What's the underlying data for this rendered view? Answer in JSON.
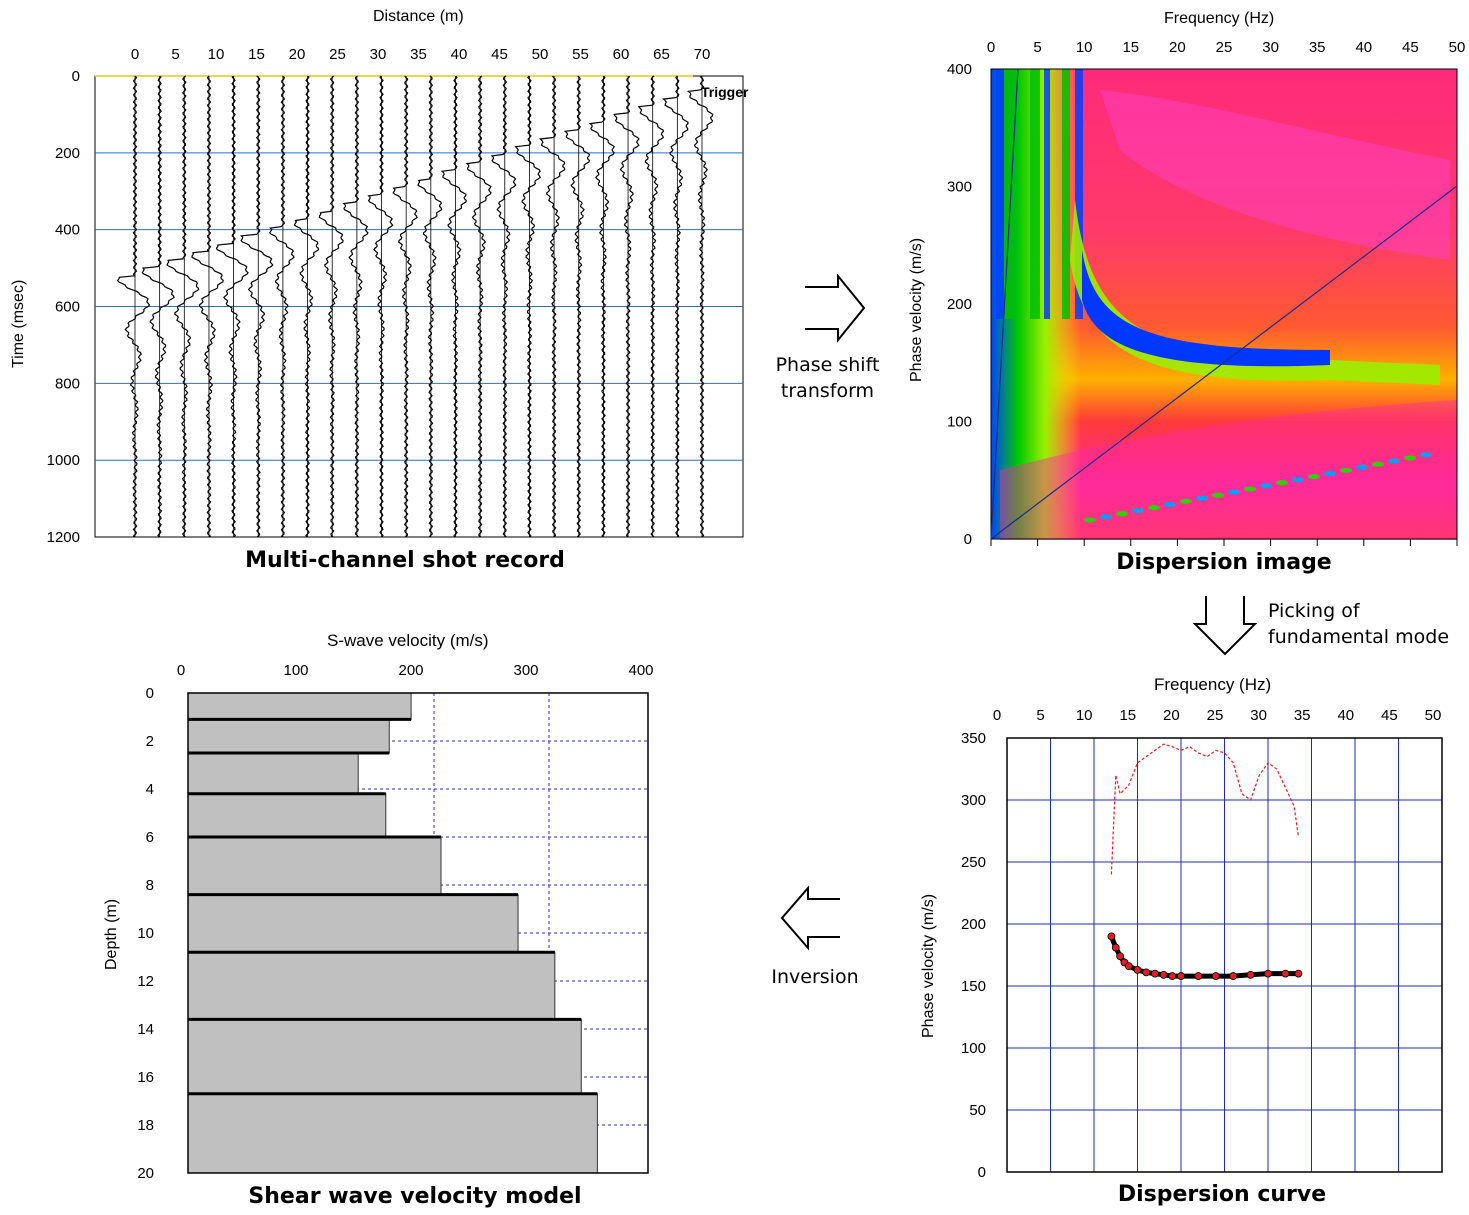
{
  "colors": {
    "grid": "#2b6fc2",
    "curve_grid": "#1c2bb0",
    "model_grid": "#2a2ad6",
    "trace": "#000000",
    "pick_red": "#e02020",
    "model_fill": "#c0c0c0",
    "first_arrival_line": "#1c2b8c"
  },
  "panels": {
    "shot_record": {
      "caption": "Multi-channel shot record",
      "x_title": "Distance (m)",
      "y_title": "Time (msec)",
      "x_ticks": [
        "0",
        "5",
        "10",
        "15",
        "20",
        "25",
        "30",
        "35",
        "40",
        "45",
        "50",
        "55",
        "60",
        "65",
        "70"
      ],
      "y_ticks": [
        "0",
        "200",
        "400",
        "600",
        "800",
        "1000",
        "1200"
      ],
      "trigger_label": "Trigger"
    },
    "dispersion_image": {
      "caption": "Dispersion image",
      "x_title": "Frequency (Hz)",
      "y_title": "Phase velocity (m/s)",
      "x_ticks": [
        "0",
        "5",
        "10",
        "15",
        "20",
        "25",
        "30",
        "35",
        "40",
        "45",
        "50"
      ],
      "y_ticks": [
        "400",
        "300",
        "200",
        "100",
        "0"
      ]
    },
    "dispersion_curve": {
      "caption": "Dispersion curve",
      "x_title": "Frequency (Hz)",
      "y_title": "Phase velocity (m/s)",
      "x_ticks": [
        "0",
        "5",
        "10",
        "15",
        "20",
        "25",
        "30",
        "35",
        "40",
        "45",
        "50"
      ],
      "y_ticks": [
        "350",
        "300",
        "250",
        "200",
        "150",
        "100",
        "50",
        "0"
      ]
    },
    "velocity_model": {
      "caption": "Shear wave velocity model",
      "x_title": "S-wave velocity (m/s)",
      "y_title": "Depth (m)",
      "x_ticks": [
        "0",
        "100",
        "200",
        "300",
        "400"
      ],
      "y_ticks": [
        "0",
        "2",
        "4",
        "6",
        "8",
        "10",
        "12",
        "14",
        "16",
        "18",
        "20"
      ]
    }
  },
  "steps": {
    "phase_shift": [
      "Phase shift",
      "transform"
    ],
    "picking": [
      "Picking of",
      "fundamental mode"
    ],
    "inversion": "Inversion"
  },
  "chart_data": [
    {
      "type": "line",
      "name": "dispersion_curve",
      "xlabel": "Frequency (Hz)",
      "ylabel": "Phase velocity (m/s)",
      "xlim": [
        0,
        50
      ],
      "ylim": [
        0,
        350
      ],
      "grid": true,
      "series": [
        {
          "style": "markers",
          "x": [
            12.0,
            12.5,
            13.0,
            13.5,
            14.0,
            15.0,
            16.0,
            17.0,
            18.0,
            19.0,
            20.0,
            22.0,
            24.0,
            26.0,
            28.0,
            30.0,
            32.0,
            33.5
          ],
          "y": [
            190,
            181,
            174,
            169,
            166,
            163,
            161,
            160,
            159,
            158,
            158,
            158,
            158,
            158,
            159,
            160,
            160,
            160
          ]
        },
        {
          "style": "dashed",
          "x": [
            12.0,
            12.5,
            13.0,
            14.0,
            15.0,
            16.0,
            17.0,
            18.0,
            19.0,
            20.0,
            21.0,
            22.0,
            23.0,
            24.0,
            25.0,
            26.0,
            27.0,
            28.0,
            29.0,
            30.0,
            31.0,
            32.0,
            33.0,
            33.5
          ],
          "y": [
            240,
            320,
            305,
            312,
            330,
            335,
            340,
            345,
            343,
            340,
            343,
            338,
            335,
            340,
            338,
            330,
            305,
            300,
            320,
            330,
            325,
            310,
            295,
            270
          ]
        }
      ]
    },
    {
      "type": "bar",
      "name": "shear_wave_velocity_model",
      "xlabel": "S-wave velocity (m/s)",
      "ylabel": "Depth (m)",
      "xlim": [
        0,
        400
      ],
      "ylim": [
        0,
        20
      ],
      "layers": [
        {
          "top": 0.0,
          "bottom": 1.1,
          "velocity": 194
        },
        {
          "top": 1.1,
          "bottom": 2.5,
          "velocity": 175
        },
        {
          "top": 2.5,
          "bottom": 4.2,
          "velocity": 148
        },
        {
          "top": 4.2,
          "bottom": 6.0,
          "velocity": 172
        },
        {
          "top": 6.0,
          "bottom": 8.4,
          "velocity": 220
        },
        {
          "top": 8.4,
          "bottom": 10.8,
          "velocity": 287
        },
        {
          "top": 10.8,
          "bottom": 13.6,
          "velocity": 319
        },
        {
          "top": 13.6,
          "bottom": 16.7,
          "velocity": 342
        },
        {
          "top": 16.7,
          "bottom": 20.0,
          "velocity": 356
        }
      ]
    }
  ]
}
